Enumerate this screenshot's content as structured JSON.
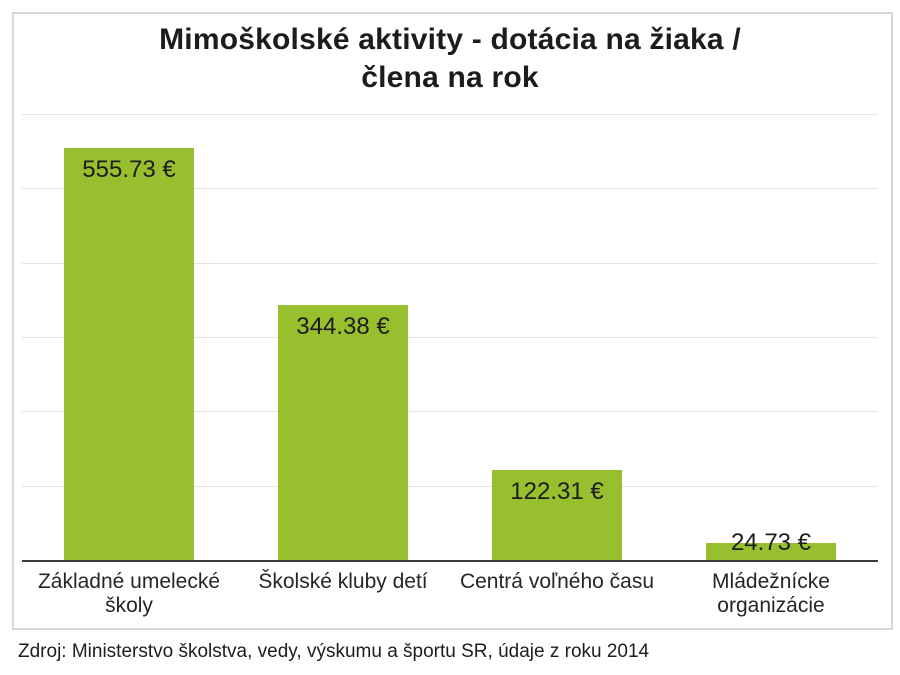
{
  "chart_data": {
    "type": "bar",
    "title": "Mimoškolské aktivity - dotácia na žiaka / člena na rok",
    "title_lines": [
      "Mimoškolské aktivity - dotácia na žiaka /",
      "člena na rok"
    ],
    "categories": [
      "Základné umelecké školy",
      "Školské kluby detí",
      "Centrá voľného času",
      "Mládežnícke organizácie"
    ],
    "values": [
      555.73,
      344.38,
      122.31,
      24.73
    ],
    "value_labels": [
      "555.73 €",
      "344.38 €",
      "122.31 €",
      "24.73 €"
    ],
    "currency_symbol": "€",
    "xlabel": "",
    "ylabel": "",
    "ylim": [
      0,
      600
    ],
    "gridline_step": 100,
    "grid": true,
    "legend_position": "none",
    "bar_color": "#97bf2e",
    "axis_color": "#3d3d3d",
    "gridline_color": "#e5e5e2",
    "source": "Zdroj: Ministerstvo školstva, vedy, výskumu a športu SR, údaje z roku 2014"
  }
}
